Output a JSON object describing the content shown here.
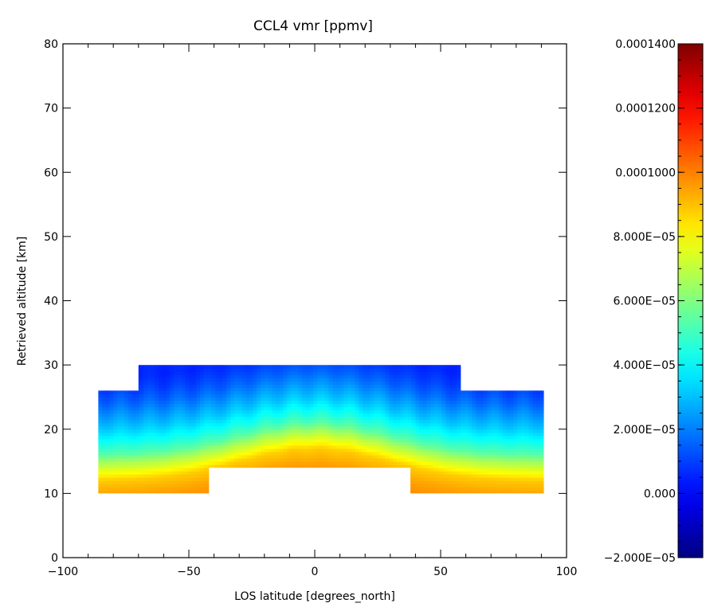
{
  "chart_data": {
    "type": "heatmap",
    "title": "CCL4 vmr [ppmv]",
    "xlabel": "LOS latitude [degrees_north]",
    "ylabel": "Retrieved altitude [km]",
    "xlim": [
      -100,
      100
    ],
    "ylim": [
      0,
      80
    ],
    "x_ticks": [
      -100,
      -50,
      0,
      50,
      100
    ],
    "x_tick_labels": [
      "−100",
      "−50",
      "0",
      "50",
      "100"
    ],
    "y_ticks": [
      0,
      10,
      20,
      30,
      40,
      50,
      60,
      70,
      80
    ],
    "y_tick_labels": [
      "0",
      "10",
      "20",
      "30",
      "40",
      "50",
      "60",
      "70",
      "80"
    ],
    "grid": false,
    "colorbar": {
      "range": [
        -2e-05,
        0.00014
      ],
      "colormap": "jet",
      "ticks": [
        -2e-05,
        0.0,
        2e-05,
        4e-05,
        6e-05,
        8e-05,
        0.0001,
        0.00012,
        0.00014
      ],
      "tick_labels": [
        "−2.000E−05",
        "0.000",
        "2.000E−05",
        "4.000E−05",
        "6.000E−05",
        "8.000E−05",
        "0.0001000",
        "0.0001200",
        "0.0001400"
      ]
    },
    "data_region": [
      {
        "lat_range": [
          -86,
          -70
        ],
        "alt_range": [
          10,
          26
        ]
      },
      {
        "lat_range": [
          -70,
          -42
        ],
        "alt_range": [
          10,
          30
        ]
      },
      {
        "lat_range": [
          -42,
          38
        ],
        "alt_range": [
          14,
          30
        ]
      },
      {
        "lat_range": [
          38,
          58
        ],
        "alt_range": [
          10,
          30
        ]
      },
      {
        "lat_range": [
          58,
          91
        ],
        "alt_range": [
          10,
          26
        ]
      }
    ],
    "vertical_profile": {
      "altitude_km": [
        10,
        12,
        14,
        16,
        17,
        18,
        20,
        22,
        24,
        26,
        28,
        30
      ],
      "vmr_ppmv": [
        9.8e-05,
        9.4e-05,
        8.8e-05,
        7.2e-05,
        6.4e-05,
        5.4e-05,
        4.2e-05,
        3.2e-05,
        2.4e-05,
        1.6e-05,
        1e-05,
        6e-06
      ]
    },
    "tropical_peak_alt_km": 17,
    "polar_mid_alt_km": 12
  }
}
